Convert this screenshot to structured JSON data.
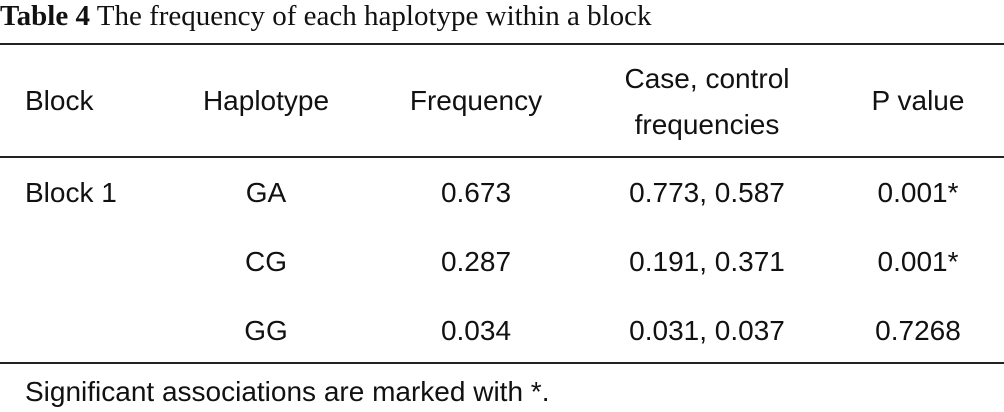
{
  "title": {
    "label": "Table 4",
    "text": "The frequency of each haplotype within a block"
  },
  "table": {
    "columns": [
      "Block",
      "Haplotype",
      "Frequency",
      "Case, control frequencies",
      "P value"
    ],
    "groups": [
      {
        "label": "Block 1",
        "rows": [
          [
            "GA",
            "0.673",
            "0.773, 0.587",
            "0.001*"
          ],
          [
            "CG",
            "0.287",
            "0.191, 0.371",
            "0.001*"
          ],
          [
            "GG",
            "0.034",
            "0.031, 0.037",
            "0.7268"
          ]
        ]
      }
    ]
  },
  "footnote": "Significant associations are marked with *."
}
